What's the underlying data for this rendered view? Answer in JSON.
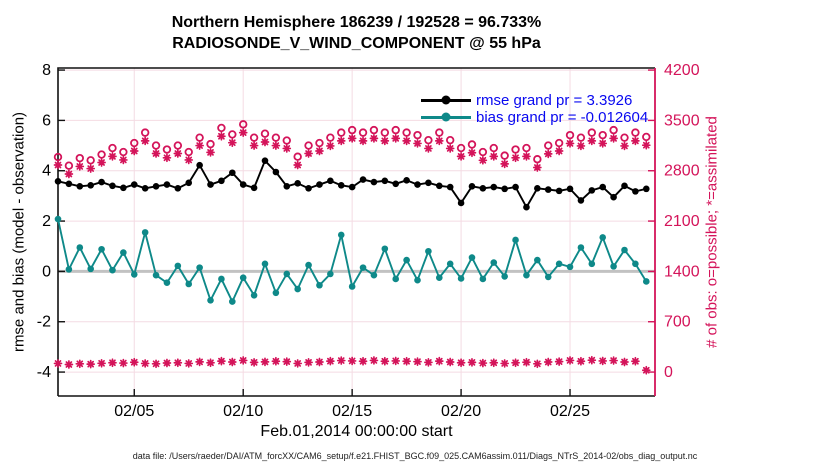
{
  "header": {
    "title_line1": "Northern Hemisphere 186239 / 192528 = 96.733%",
    "title_line2": "RADIOSONDE_V_WIND_COMPONENT @ 55 hPa"
  },
  "legend": {
    "text_color": "#0808f0",
    "items": [
      {
        "label": "rmse grand pr = 3.3926",
        "color": "#000000"
      },
      {
        "label": "bias grand pr = -0.012604",
        "color": "#0e8989"
      }
    ]
  },
  "footer": {
    "text": "data file: /Users/raeder/DAI/ATM_forcXX/CAM6_setup/f.e21.FHIST_BGC.f09_025.CAM6assim.011/Diags_NTrS_2014-02/obs_diag_output.nc"
  },
  "chart_data": {
    "type": "line",
    "title": "Northern Hemisphere 186239 / 192528 = 96.733%",
    "subtitle": "RADIOSONDE_V_WIND_COMPONENT @ 55 hPa",
    "grid": {
      "on": true,
      "color": "#f4dbe3"
    },
    "zero_line": {
      "value": 0,
      "color": "#c2c2c2"
    },
    "x_axis": {
      "label": "Feb.01,2014 00:00:00 start",
      "units": "days since 2014-02-01 12:00",
      "range_days": [
        0,
        27.4
      ],
      "ticks": [
        {
          "label": "02/05",
          "day": 3.5
        },
        {
          "label": "02/10",
          "day": 8.5
        },
        {
          "label": "02/15",
          "day": 13.5
        },
        {
          "label": "02/20",
          "day": 18.5
        },
        {
          "label": "02/25",
          "day": 23.5
        }
      ]
    },
    "left_axis": {
      "label": "rmse and bias (model - observation)",
      "color": "#000000",
      "ticks": [
        -4,
        -2,
        0,
        2,
        4,
        6,
        8
      ],
      "range": [
        -4.95,
        8.08
      ]
    },
    "right_axis": {
      "label": "# of obs: o=possible; *=assimilated",
      "color": "#d4145a",
      "ticks": [
        0,
        700,
        1400,
        2100,
        2800,
        3500,
        4200
      ],
      "range": [
        -333,
        4228
      ]
    },
    "x_start_day": 0,
    "x_step_day": 0.5,
    "series": [
      {
        "key": "rmse",
        "name": "rmse grand pr = 3.3926",
        "axis": "left",
        "color": "#000000",
        "line": true,
        "marker": "filled-circle",
        "values": [
          3.58,
          3.48,
          3.38,
          3.42,
          3.55,
          3.4,
          3.32,
          3.45,
          3.3,
          3.38,
          3.45,
          3.3,
          3.52,
          4.22,
          3.45,
          3.6,
          3.92,
          3.45,
          3.32,
          4.4,
          3.95,
          3.38,
          3.5,
          3.3,
          3.45,
          3.6,
          3.42,
          3.35,
          3.65,
          3.55,
          3.6,
          3.48,
          3.62,
          3.45,
          3.52,
          3.4,
          3.35,
          2.72,
          3.38,
          3.3,
          3.35,
          3.28,
          3.35,
          2.55,
          3.3,
          3.25,
          3.2,
          3.28,
          2.82,
          3.22,
          3.35,
          2.95,
          3.4,
          3.18,
          3.28
        ]
      },
      {
        "key": "bias",
        "name": "bias grand pr = -0.012604",
        "axis": "left",
        "color": "#0e8989",
        "line": true,
        "marker": "filled-circle",
        "values": [
          2.08,
          0.08,
          0.95,
          0.1,
          0.88,
          0.05,
          0.75,
          -0.12,
          1.55,
          -0.15,
          -0.45,
          0.22,
          -0.5,
          0.15,
          -1.15,
          -0.3,
          -1.2,
          -0.25,
          -0.95,
          0.3,
          -0.85,
          -0.1,
          -0.7,
          0.25,
          -0.55,
          -0.1,
          1.45,
          -0.6,
          0.15,
          -0.15,
          0.9,
          -0.3,
          0.45,
          -0.35,
          0.8,
          -0.25,
          0.3,
          -0.28,
          0.55,
          -0.3,
          0.35,
          -0.2,
          1.25,
          -0.15,
          0.45,
          -0.22,
          0.3,
          0.18,
          0.95,
          0.3,
          1.35,
          0.2,
          0.85,
          0.3,
          -0.4
        ]
      },
      {
        "key": "obs-possible",
        "name": "# of obs possible (o)",
        "axis": "right",
        "color": "#d4145a",
        "line": false,
        "marker": "open-circle",
        "values": [
          2990,
          2870,
          2975,
          2945,
          3025,
          3115,
          3060,
          3185,
          3330,
          3150,
          3095,
          3150,
          3060,
          3260,
          3170,
          3395,
          3305,
          3445,
          3260,
          3315,
          3260,
          3220,
          2995,
          3150,
          3185,
          3260,
          3330,
          3365,
          3330,
          3365,
          3330,
          3365,
          3330,
          3295,
          3225,
          3330,
          3225,
          3115,
          3165,
          3060,
          3115,
          3010,
          3095,
          3115,
          2960,
          3150,
          3185,
          3295,
          3260,
          3330,
          3295,
          3365,
          3260,
          3330,
          3270
        ]
      },
      {
        "key": "obs-assimilated",
        "name": "# of obs assimilated (*)",
        "axis": "right",
        "color": "#d4145a",
        "line": false,
        "marker": "asterisk",
        "values": [
          2880,
          2755,
          2860,
          2830,
          2915,
          3000,
          2950,
          3075,
          3215,
          3040,
          2980,
          3040,
          2950,
          3150,
          3055,
          3280,
          3190,
          3330,
          3150,
          3200,
          3150,
          3110,
          2880,
          3040,
          3075,
          3145,
          3215,
          3250,
          3215,
          3250,
          3215,
          3250,
          3215,
          3180,
          3110,
          3215,
          3110,
          3000,
          3050,
          2945,
          3000,
          2895,
          2980,
          3000,
          2845,
          3035,
          3075,
          3180,
          3145,
          3215,
          3180,
          3250,
          3145,
          3215,
          3155
        ]
      },
      {
        "key": "obs-low-band",
        "name": "# of obs low band (*)",
        "axis": "right",
        "color": "#d4145a",
        "line": false,
        "marker": "asterisk",
        "values": [
          120,
          105,
          115,
          110,
          122,
          130,
          125,
          137,
          120,
          115,
          126,
          130,
          120,
          142,
          130,
          152,
          140,
          162,
          135,
          142,
          150,
          145,
          120,
          135,
          140,
          152,
          160,
          155,
          150,
          162,
          150,
          155,
          150,
          145,
          135,
          152,
          140,
          130,
          135,
          125,
          130,
          120,
          130,
          137,
          115,
          140,
          145,
          162,
          150,
          165,
          155,
          160,
          140,
          150,
          25
        ]
      }
    ]
  }
}
